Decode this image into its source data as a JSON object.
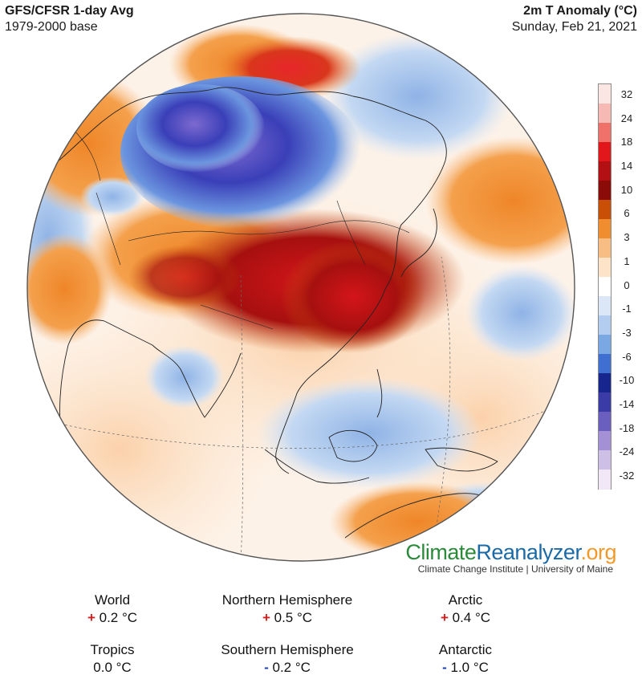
{
  "header": {
    "title_left": "GFS/CFSR 1-day Avg",
    "subtitle_left": "1979-2000 base",
    "title_right": "2m T Anomaly (°C)",
    "date_right": "Sunday, Feb 21, 2021"
  },
  "colorbar": {
    "labels": [
      "32",
      "24",
      "18",
      "14",
      "10",
      "6",
      "3",
      "1",
      "0",
      "-1",
      "-3",
      "-6",
      "-10",
      "-14",
      "-18",
      "-24",
      "-32"
    ],
    "colors": [
      "#fbe6e4",
      "#f7b9b3",
      "#f0706a",
      "#e2171b",
      "#b31014",
      "#8a0b08",
      "#c94e06",
      "#f08d2e",
      "#f7bd83",
      "#fde3c8",
      "#ffffff",
      "#dbe7f6",
      "#b2cdef",
      "#7aa8e2",
      "#3e6fd1",
      "#17258f",
      "#3b3ba8",
      "#6a5fbf",
      "#a490d5",
      "#cdbfe6",
      "#f1e7f6"
    ]
  },
  "brand": {
    "part1": "Climate",
    "part2": "Reanalyzer",
    "part3": ".org",
    "subtitle": "Climate Change Institute | University of Maine"
  },
  "stats": {
    "world": {
      "label": "World",
      "sign": "+",
      "value": "0.2 °C"
    },
    "nh": {
      "label": "Northern Hemisphere",
      "sign": "+",
      "value": "0.5 °C"
    },
    "arctic": {
      "label": "Arctic",
      "sign": "+",
      "value": "0.4 °C"
    },
    "tropics": {
      "label": "Tropics",
      "sign": "",
      "value": "0.0 °C"
    },
    "sh": {
      "label": "Southern Hemisphere",
      "sign": "-",
      "value": "0.2 °C"
    },
    "antarctic": {
      "label": "Antarctic",
      "sign": "-",
      "value": "1.0 °C"
    }
  },
  "colors": {
    "ocean_warm": "#fde3c8",
    "ocean_cool": "#dbe7f6",
    "land_hot": "#b31014",
    "land_cold": "#3e3fb5",
    "coastline": "#222222",
    "plus": "#d11f1f",
    "minus": "#1e3fb0"
  }
}
